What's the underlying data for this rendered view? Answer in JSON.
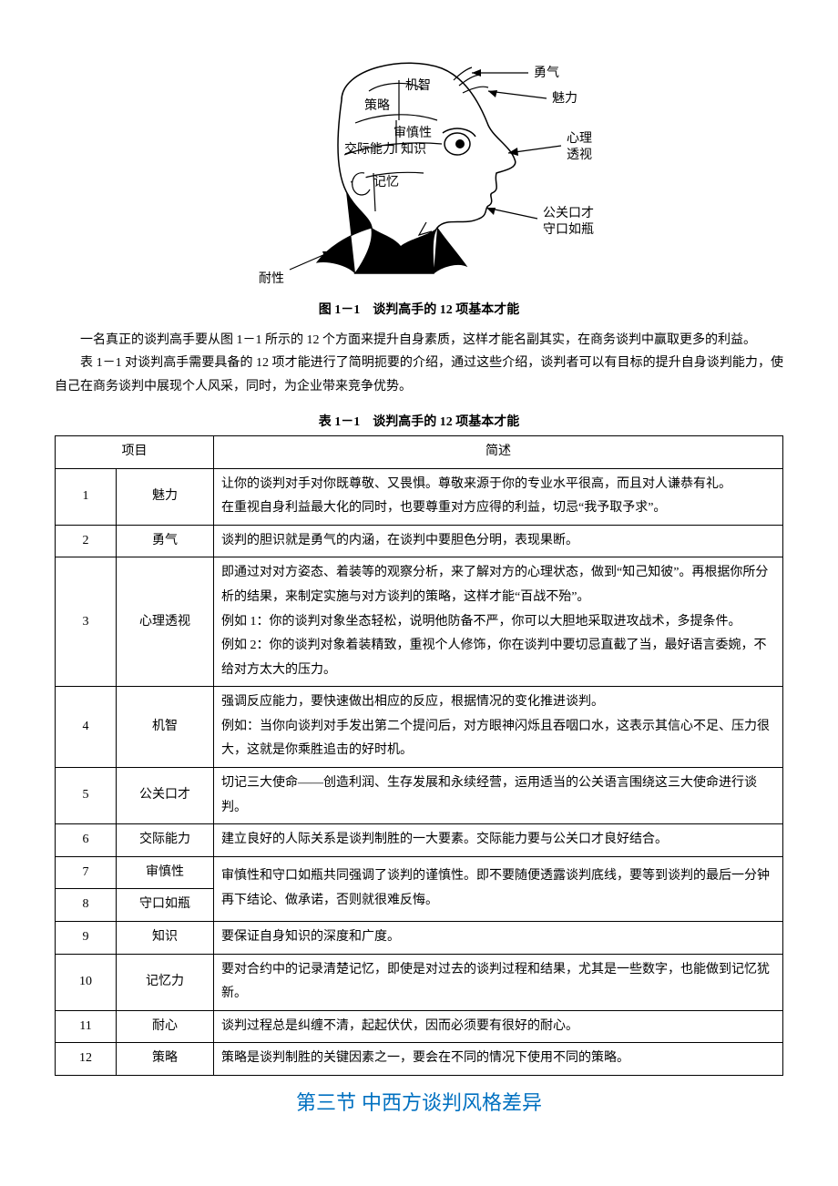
{
  "figure": {
    "caption": "图 1－1　谈判高手的 12 项基本才能",
    "labels": {
      "jizhi": "机智",
      "celue": "策略",
      "shenshenxing": "审慎性",
      "jiaojinengli": "交际能力",
      "zhishi": "知识",
      "jiyi": "记忆",
      "yongqi": "勇气",
      "meili": "魅力",
      "xinli1": "心理",
      "xinli2": "透视",
      "gongguan1": "公关口才",
      "gongguan2": "守口如瓶",
      "naixing": "耐性"
    },
    "stroke": "#000000",
    "fill_black": "#000000",
    "fill_white": "#ffffff"
  },
  "paragraphs": {
    "p1": "一名真正的谈判高手要从图 1－1 所示的 12 个方面来提升自身素质，这样才能名副其实，在商务谈判中赢取更多的利益。",
    "p2": "表 1－1 对谈判高手需要具备的 12 项才能进行了简明扼要的介绍，通过这些介绍，谈判者可以有目标的提升自身谈判能力，使自己在商务谈判中展现个人风采，同时，为企业带来竞争优势。"
  },
  "table": {
    "caption": "表 1－1　谈判高手的 12 项基本才能",
    "head_item": "项目",
    "head_desc": "简述",
    "rows": [
      {
        "num": "1",
        "name": "魅力",
        "desc": "让你的谈判对手对你既尊敬、又畏惧。尊敬来源于你的专业水平很高，而且对人谦恭有礼。\n在重视自身利益最大化的同时，也要尊重对方应得的利益，切忌“我予取予求”。"
      },
      {
        "num": "2",
        "name": "勇气",
        "desc": "谈判的胆识就是勇气的内涵，在谈判中要胆色分明，表现果断。"
      },
      {
        "num": "3",
        "name": "心理透视",
        "desc": "即通过对对方姿态、着装等的观察分析，来了解对方的心理状态，做到“知己知彼”。再根据你所分析的结果，来制定实施与对方谈判的策略，这样才能“百战不殆”。\n例如 1：你的谈判对象坐态轻松，说明他防备不严，你可以大胆地采取进攻战术，多提条件。\n例如 2：你的谈判对象着装精致，重视个人修饰，你在谈判中要切忌直截了当，最好语言委婉，不给对方太大的压力。"
      },
      {
        "num": "4",
        "name": "机智",
        "desc": "强调反应能力，要快速做出相应的反应，根据情况的变化推进谈判。\n例如：当你向谈判对手发出第二个提问后，对方眼神闪烁且吞咽口水，这表示其信心不足、压力很大，这就是你乘胜追击的好时机。"
      },
      {
        "num": "5",
        "name": "公关口才",
        "desc": "切记三大使命——创造利润、生存发展和永续经营，运用适当的公关语言围绕这三大使命进行谈判。"
      },
      {
        "num": "6",
        "name": "交际能力",
        "desc": "建立良好的人际关系是谈判制胜的一大要素。交际能力要与公关口才良好结合。"
      },
      {
        "num": "7",
        "name": "审慎性",
        "desc_merged_with_8": true
      },
      {
        "num": "8",
        "name": "守口如瓶",
        "desc": "审慎性和守口如瓶共同强调了谈判的谨慎性。即不要随便透露谈判底线，要等到谈判的最后一分钟再下结论、做承诺，否则就很难反悔。"
      },
      {
        "num": "9",
        "name": "知识",
        "desc": "要保证自身知识的深度和广度。"
      },
      {
        "num": "10",
        "name": "记忆力",
        "desc": "要对合约中的记录清楚记忆，即使是对过去的谈判过程和结果，尤其是一些数字，也能做到记忆犹新。"
      },
      {
        "num": "11",
        "name": "耐心",
        "desc": "谈判过程总是纠缠不清，起起伏伏，因而必须要有很好的耐心。"
      },
      {
        "num": "12",
        "name": "策略",
        "desc": "策略是谈判制胜的关键因素之一，要会在不同的情况下使用不同的策略。"
      }
    ]
  },
  "section_heading": "第三节  中西方谈判风格差异",
  "colors": {
    "heading": "#0070c0",
    "text": "#000000",
    "border": "#000000",
    "background": "#ffffff"
  }
}
